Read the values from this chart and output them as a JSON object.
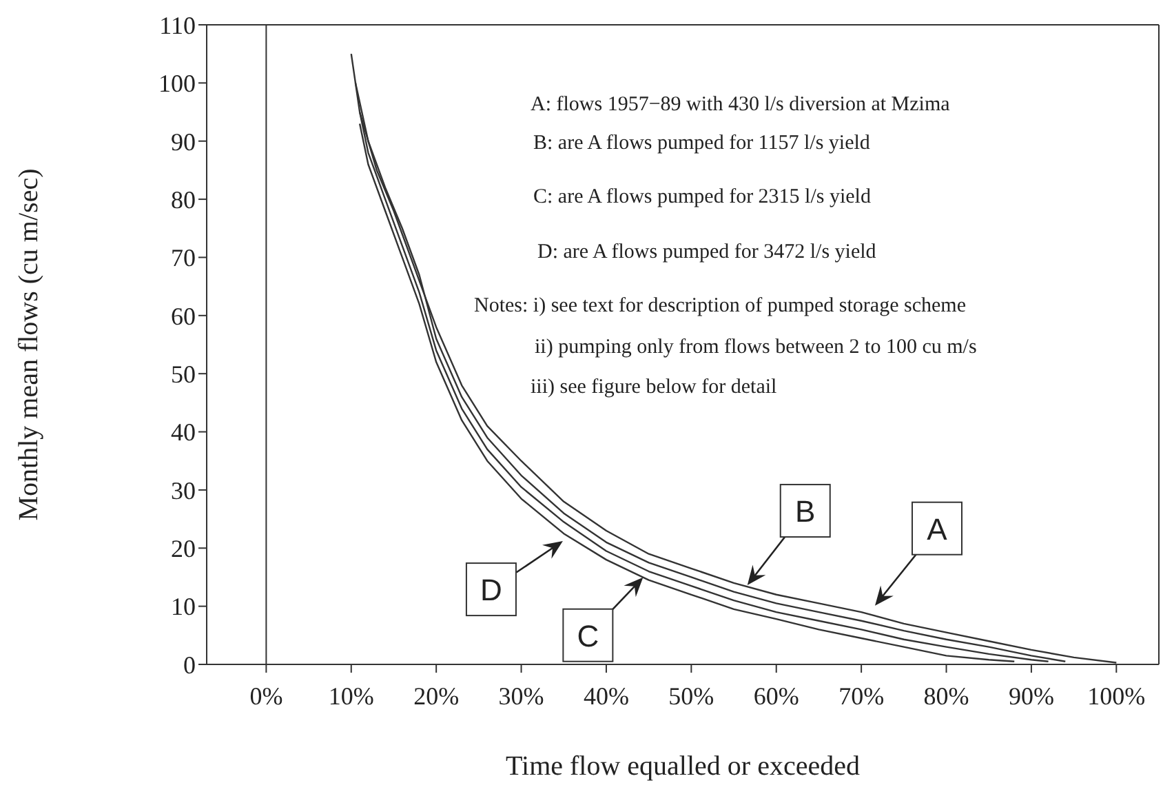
{
  "chart_data": {
    "type": "line",
    "xlabel": "Time flow equalled or exceeded",
    "ylabel": "Monthly mean flows (cu m/sec)",
    "xlim": [
      -7,
      105
    ],
    "xticks": [
      {
        "value": 0,
        "label": "0%"
      },
      {
        "value": 10,
        "label": "10%"
      },
      {
        "value": 20,
        "label": "20%"
      },
      {
        "value": 30,
        "label": "30%"
      },
      {
        "value": 40,
        "label": "40%"
      },
      {
        "value": 50,
        "label": "50%"
      },
      {
        "value": 60,
        "label": "60%"
      },
      {
        "value": 70,
        "label": "70%"
      },
      {
        "value": 80,
        "label": "80%"
      },
      {
        "value": 90,
        "label": "90%"
      },
      {
        "value": 100,
        "label": "100%"
      }
    ],
    "ylim": [
      0,
      110
    ],
    "yticks": [
      0,
      10,
      20,
      30,
      40,
      50,
      60,
      70,
      80,
      90,
      100,
      110
    ],
    "marker": "none",
    "line_style": "solid",
    "ref_lines": [
      {
        "axis": "x",
        "value": 0,
        "color": "#333333"
      }
    ],
    "series": [
      {
        "color": "#333333",
        "x": [
          10,
          11,
          13,
          15,
          17,
          20,
          23,
          26,
          30,
          35,
          40,
          45,
          50,
          55,
          60,
          65,
          70,
          75,
          80,
          85,
          90,
          95,
          100
        ],
        "values": [
          105,
          95,
          85,
          78,
          70,
          58,
          48,
          41,
          35,
          28,
          23,
          19,
          16.5,
          14,
          12,
          10.5,
          9,
          7,
          5.5,
          4,
          2.5,
          1.2,
          0.3
        ]
      },
      {
        "color": "#333333",
        "x": [
          10.5,
          12,
          14,
          16,
          18,
          20,
          23,
          26,
          30,
          35,
          40,
          45,
          50,
          55,
          60,
          65,
          70,
          75,
          80,
          85,
          90,
          94
        ],
        "values": [
          100,
          90,
          82,
          75,
          67,
          56,
          46,
          39,
          32.5,
          26,
          21,
          17.5,
          15,
          12.5,
          10.5,
          9,
          7.5,
          5.8,
          4.3,
          3,
          1.5,
          0.5
        ]
      },
      {
        "color": "#333333",
        "x": [
          11,
          12,
          14,
          16,
          18,
          20,
          23,
          26,
          30,
          35,
          40,
          45,
          50,
          55,
          60,
          65,
          70,
          75,
          80,
          85,
          90,
          92
        ],
        "values": [
          95,
          88,
          80,
          72,
          64,
          54,
          44,
          37,
          30.5,
          24.5,
          19.5,
          16,
          13.5,
          11,
          9,
          7.5,
          6,
          4.3,
          3,
          1.8,
          0.8,
          0.5
        ]
      },
      {
        "color": "#333333",
        "x": [
          11,
          12,
          14,
          16,
          18,
          20,
          23,
          26,
          30,
          35,
          40,
          45,
          50,
          55,
          60,
          65,
          70,
          75,
          80,
          85,
          88
        ],
        "values": [
          93,
          86,
          78,
          70,
          62,
          52,
          42,
          35,
          28.5,
          22.5,
          18,
          14.5,
          12,
          9.5,
          7.8,
          6,
          4.5,
          3,
          1.5,
          0.8,
          0.5
        ]
      }
    ],
    "annotations": [
      "A: flows 1957−89 with 430 l/s diversion at Mzima",
      "B: are A flows pumped for 1157 l/s yield",
      "C: are A flows pumped for 2315 l/s yield",
      "D: are A flows pumped for 3472 l/s yield",
      "Notes: i) see text for description of pumped storage scheme",
      "ii) pumping only from flows between 2 to 100 cu m/s",
      "iii) see figure below for detail",
      {
        "text": "A",
        "x": 71,
        "y": 9
      },
      {
        "text": "B",
        "x": 56,
        "y": 12.5
      },
      {
        "text": "C",
        "x": 45,
        "y": 16
      },
      {
        "text": "D",
        "x": 35.7,
        "y": 22
      }
    ]
  }
}
